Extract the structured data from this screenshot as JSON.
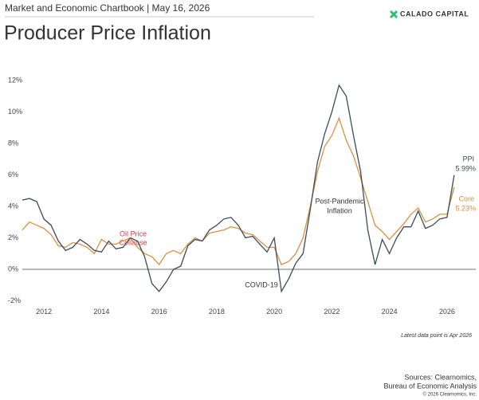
{
  "header": "Market and Economic Chartbook | May 16, 2026",
  "logo": "CALADO CAPITAL",
  "chart_data": {
    "type": "line",
    "title": "Producer Price Inflation",
    "x": [
      2011.25,
      2011.5,
      2011.75,
      2012.0,
      2012.25,
      2012.5,
      2012.75,
      2013.0,
      2013.25,
      2013.5,
      2013.75,
      2014.0,
      2014.25,
      2014.5,
      2014.75,
      2015.0,
      2015.25,
      2015.5,
      2015.75,
      2016.0,
      2016.25,
      2016.5,
      2016.75,
      2017.0,
      2017.25,
      2017.5,
      2017.75,
      2018.0,
      2018.25,
      2018.5,
      2018.75,
      2019.0,
      2019.25,
      2019.5,
      2019.75,
      2020.0,
      2020.25,
      2020.5,
      2020.75,
      2021.0,
      2021.25,
      2021.5,
      2021.75,
      2022.0,
      2022.25,
      2022.5,
      2022.75,
      2023.0,
      2023.25,
      2023.5,
      2023.75,
      2024.0,
      2024.25,
      2024.5,
      2024.75,
      2025.0,
      2025.25,
      2025.5,
      2025.75,
      2026.0,
      2026.25
    ],
    "series": [
      {
        "name": "PPI",
        "color": "#3d4a5c",
        "last_label": "5.99%",
        "values": [
          4.4,
          4.5,
          4.3,
          3.2,
          2.8,
          1.8,
          1.2,
          1.4,
          1.9,
          1.6,
          1.2,
          1.1,
          1.8,
          1.3,
          1.4,
          2.0,
          1.8,
          0.8,
          -0.9,
          -1.4,
          -0.8,
          0.0,
          0.2,
          1.5,
          1.9,
          1.8,
          2.5,
          2.8,
          3.2,
          3.3,
          2.8,
          2.0,
          2.1,
          1.6,
          1.1,
          2.0,
          -1.4,
          -0.6,
          0.4,
          1.0,
          3.8,
          6.8,
          8.6,
          10.0,
          11.7,
          11.0,
          8.5,
          6.2,
          2.5,
          0.3,
          1.9,
          1.0,
          2.0,
          2.7,
          2.7,
          3.7,
          2.6,
          2.8,
          3.2,
          3.3,
          5.99
        ]
      },
      {
        "name": "Core",
        "color": "#d9913f",
        "last_label": "5.23%",
        "values": [
          2.5,
          3.0,
          2.8,
          2.6,
          2.2,
          1.5,
          1.4,
          1.7,
          1.6,
          1.4,
          1.0,
          1.9,
          1.6,
          1.6,
          1.8,
          2.0,
          1.4,
          1.0,
          0.8,
          0.3,
          1.0,
          1.2,
          1.0,
          1.6,
          2.0,
          1.8,
          2.3,
          2.4,
          2.5,
          2.7,
          2.6,
          2.3,
          2.2,
          1.8,
          1.4,
          1.4,
          0.3,
          0.5,
          1.0,
          2.0,
          4.0,
          6.2,
          7.8,
          8.5,
          9.6,
          8.2,
          7.2,
          5.8,
          4.3,
          2.8,
          2.4,
          1.9,
          2.4,
          2.9,
          3.5,
          3.9,
          3.0,
          3.2,
          3.5,
          3.5,
          5.23
        ]
      }
    ],
    "xlim": [
      2011.25,
      2027
    ],
    "xticks": [
      2012,
      2014,
      2016,
      2018,
      2020,
      2022,
      2024,
      2026
    ],
    "ylim": [
      -2.2,
      12.5
    ],
    "yticks": [
      {
        "value": -2,
        "label": "-2%"
      },
      {
        "value": 0,
        "label": "0%"
      },
      {
        "value": 2,
        "label": "2%"
      },
      {
        "value": 4,
        "label": "4%"
      },
      {
        "value": 6,
        "label": "6%"
      },
      {
        "value": 8,
        "label": "8%"
      },
      {
        "value": 10,
        "label": "10%"
      },
      {
        "value": 12,
        "label": "12%"
      }
    ],
    "zero_line": true,
    "annotations": {
      "oil": [
        "Oil Price",
        "Collapse"
      ],
      "covid": "COVID-19",
      "post": [
        "Post-Pandemic",
        "Inflation"
      ]
    },
    "note": "Latest data point is Apr 2026"
  },
  "sources": [
    "Sources: Clearnomics,",
    "Bureau of Economic Analysis"
  ],
  "copyright": "© 2026 Clearnomics, Inc."
}
